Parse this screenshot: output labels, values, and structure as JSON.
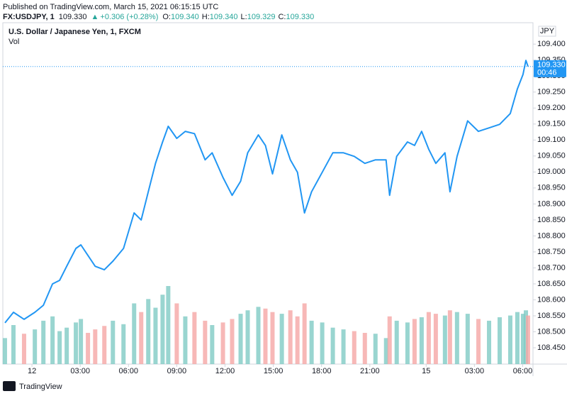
{
  "header": {
    "published": "Published on TradingView.com, March 15, 2021 06:15:15 UTC",
    "symbol": "FX:USDJPY, 1",
    "last": "109.330",
    "change": "+0.306 (+0.28%)",
    "ohlc": [
      {
        "key": "O:",
        "value": "109.340"
      },
      {
        "key": "H:",
        "value": "109.340"
      },
      {
        "key": "L:",
        "value": "109.329"
      },
      {
        "key": "C:",
        "value": "109.330"
      }
    ]
  },
  "chart_data": {
    "type": "line",
    "title": "U.S. Dollar / Japanese Yen, 1, FXCM",
    "volume_label": "Vol",
    "currency": "JPY",
    "color": "#2196f3",
    "grid": false,
    "x": [
      -1.68,
      -1.15,
      -0.49,
      0.18,
      0.71,
      1.28,
      1.72,
      2.16,
      2.73,
      3.04,
      3.48,
      3.93,
      4.5,
      5.03,
      5.69,
      6.35,
      6.79,
      7.23,
      7.68,
      8.12,
      8.47,
      9.0,
      9.53,
      10.1,
      10.76,
      11.2,
      11.87,
      12.44,
      12.97,
      13.41,
      14.07,
      14.51,
      14.95,
      15.53,
      16.06,
      16.5,
      16.94,
      17.38,
      18.04,
      18.7,
      19.36,
      20.03,
      20.69,
      21.35,
      22.01,
      22.23,
      22.67,
      23.34,
      23.78,
      24.22,
      24.66,
      25.1,
      25.67,
      25.98,
      26.42,
      27.08,
      27.75,
      28.41,
      29.07,
      29.73,
      30.17,
      30.52,
      30.7,
      30.83
    ],
    "series": [
      {
        "name": "USDJPY",
        "color": "#2196f3",
        "values": [
          108.528,
          108.561,
          108.539,
          108.561,
          108.583,
          108.65,
          108.661,
          108.705,
          108.761,
          108.772,
          108.739,
          108.705,
          108.694,
          108.721,
          108.761,
          108.872,
          108.85,
          108.938,
          109.027,
          109.094,
          109.143,
          109.105,
          109.127,
          109.12,
          109.038,
          109.06,
          108.983,
          108.927,
          108.971,
          109.06,
          109.116,
          109.083,
          108.994,
          109.116,
          109.038,
          108.999,
          108.872,
          108.938,
          108.999,
          109.06,
          109.06,
          109.049,
          109.027,
          109.038,
          109.038,
          108.927,
          109.049,
          109.094,
          109.083,
          109.127,
          109.071,
          109.027,
          109.06,
          108.938,
          109.049,
          109.16,
          109.127,
          109.138,
          109.149,
          109.183,
          109.26,
          109.305,
          109.349,
          109.33
        ]
      },
      {
        "name": "Vol",
        "up_color": "#80cbc4",
        "down_color": "#f5a6a5",
        "values": [
          30,
          45,
          35,
          40,
          50,
          55,
          38,
          42,
          48,
          52,
          36,
          40,
          44,
          50,
          46,
          70,
          60,
          75,
          65,
          80,
          90,
          70,
          55,
          60,
          50,
          45,
          48,
          52,
          58,
          62,
          66,
          64,
          60,
          58,
          62,
          55,
          70,
          50,
          48,
          42,
          40,
          38,
          36,
          35,
          30,
          55,
          50,
          48,
          52,
          54,
          60,
          58,
          56,
          62,
          60,
          58,
          52,
          50,
          54,
          56,
          60,
          58,
          62,
          56
        ]
      }
    ],
    "xlim": [
      -1.81,
      31.14
    ],
    "ylim": [
      108.399,
      109.467
    ],
    "xticks": [
      {
        "value": 0,
        "label": "12"
      },
      {
        "value": 3,
        "label": "03:00"
      },
      {
        "value": 6,
        "label": "06:00"
      },
      {
        "value": 9,
        "label": "09:00"
      },
      {
        "value": 12,
        "label": "12:00"
      },
      {
        "value": 15,
        "label": "15:00"
      },
      {
        "value": 18,
        "label": "18:00"
      },
      {
        "value": 21,
        "label": "21:00"
      },
      {
        "value": 24.5,
        "label": "15"
      },
      {
        "value": 27.5,
        "label": "03:00"
      },
      {
        "value": 30.5,
        "label": "06:00"
      }
    ],
    "yticks": [
      {
        "value": 108.45,
        "label": "108.450"
      },
      {
        "value": 108.5,
        "label": "108.500"
      },
      {
        "value": 108.55,
        "label": "108.550"
      },
      {
        "value": 108.6,
        "label": "108.600"
      },
      {
        "value": 108.65,
        "label": "108.650"
      },
      {
        "value": 108.7,
        "label": "108.700"
      },
      {
        "value": 108.75,
        "label": "108.750"
      },
      {
        "value": 108.8,
        "label": "108.800"
      },
      {
        "value": 108.85,
        "label": "108.850"
      },
      {
        "value": 108.9,
        "label": "108.900"
      },
      {
        "value": 108.95,
        "label": "108.950"
      },
      {
        "value": 109.0,
        "label": "109.000"
      },
      {
        "value": 109.05,
        "label": "109.050"
      },
      {
        "value": 109.1,
        "label": "109.100"
      },
      {
        "value": 109.15,
        "label": "109.150"
      },
      {
        "value": 109.2,
        "label": "109.200"
      },
      {
        "value": 109.25,
        "label": "109.250"
      },
      {
        "value": 109.3,
        "label": "109.300"
      },
      {
        "value": 109.35,
        "label": "109.350"
      },
      {
        "value": 109.4,
        "label": "109.400"
      }
    ],
    "last_price": {
      "value": 109.33,
      "label": "109.330"
    },
    "countdown": "00:46"
  },
  "footer": {
    "brand": "TradingView"
  }
}
